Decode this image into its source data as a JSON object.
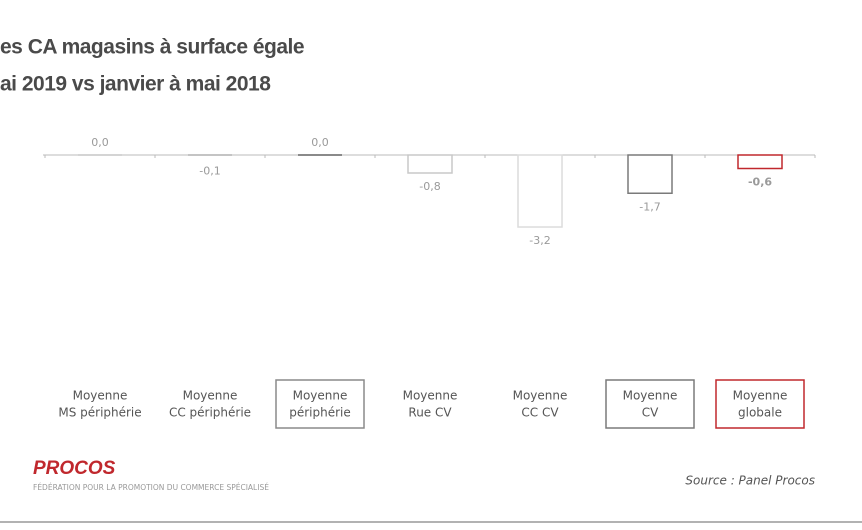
{
  "chart_data": {
    "type": "bar",
    "title": [
      "es CA magasins à surface égale",
      "ai 2019 vs janvier à mai 2018"
    ],
    "categories": [
      [
        "Moyenne",
        "MS périphérie"
      ],
      [
        "Moyenne",
        "CC périphérie"
      ],
      [
        "Moyenne",
        "périphérie"
      ],
      [
        "Moyenne",
        "Rue CV"
      ],
      [
        "Moyenne",
        "CC CV"
      ],
      [
        "Moyenne",
        "CV"
      ],
      [
        "Moyenne",
        "globale"
      ]
    ],
    "values": [
      0.0,
      -0.1,
      0.0,
      -0.8,
      -3.2,
      -1.7,
      -0.6
    ],
    "value_labels": [
      "0,0",
      "-0,1",
      "0,0",
      "-0,8",
      "-3,2",
      "-1,7",
      "-0,6"
    ],
    "colors": [
      "#d4d4d4",
      "#c4c4c4",
      "#8a8a8a",
      "#c8c8c8",
      "#dcdcdc",
      "#7a7a7a",
      "#c0282d"
    ],
    "boxed": [
      false,
      false,
      true,
      false,
      false,
      true,
      true
    ],
    "logo": "PROCOS",
    "logo_subtitle": "FÉDÉRATION POUR LA PROMOTION DU COMMERCE SPÉCIALISÉ",
    "source": "Source : Panel Procos"
  }
}
